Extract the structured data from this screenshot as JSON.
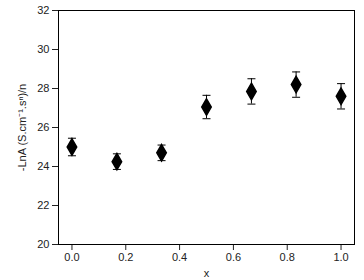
{
  "chart_data": {
    "type": "scatter",
    "x_label": "x",
    "y_label": "-LnA (S.cm⁻¹.sⁿ)/n",
    "x": [
      0.0,
      0.167,
      0.333,
      0.5,
      0.667,
      0.833,
      1.0
    ],
    "values": [
      25.0,
      24.25,
      24.7,
      27.05,
      27.85,
      28.2,
      27.6
    ],
    "errors": [
      0.45,
      0.4,
      0.4,
      0.6,
      0.65,
      0.65,
      0.65
    ],
    "color": "#000000",
    "marker": "diamond",
    "xlim": [
      -0.05,
      1.05
    ],
    "xticks": [
      {
        "value": 0,
        "label": "0.0"
      },
      {
        "value": 0.2,
        "label": "0.2"
      },
      {
        "value": 0.4,
        "label": "0.4"
      },
      {
        "value": 0.6,
        "label": "0.6"
      },
      {
        "value": 0.8,
        "label": "0.8"
      },
      {
        "value": 1,
        "label": "1.0"
      }
    ],
    "ylim": [
      20,
      32
    ],
    "yticks": [
      20,
      22,
      24,
      26,
      28,
      30,
      32
    ],
    "grid": false
  }
}
